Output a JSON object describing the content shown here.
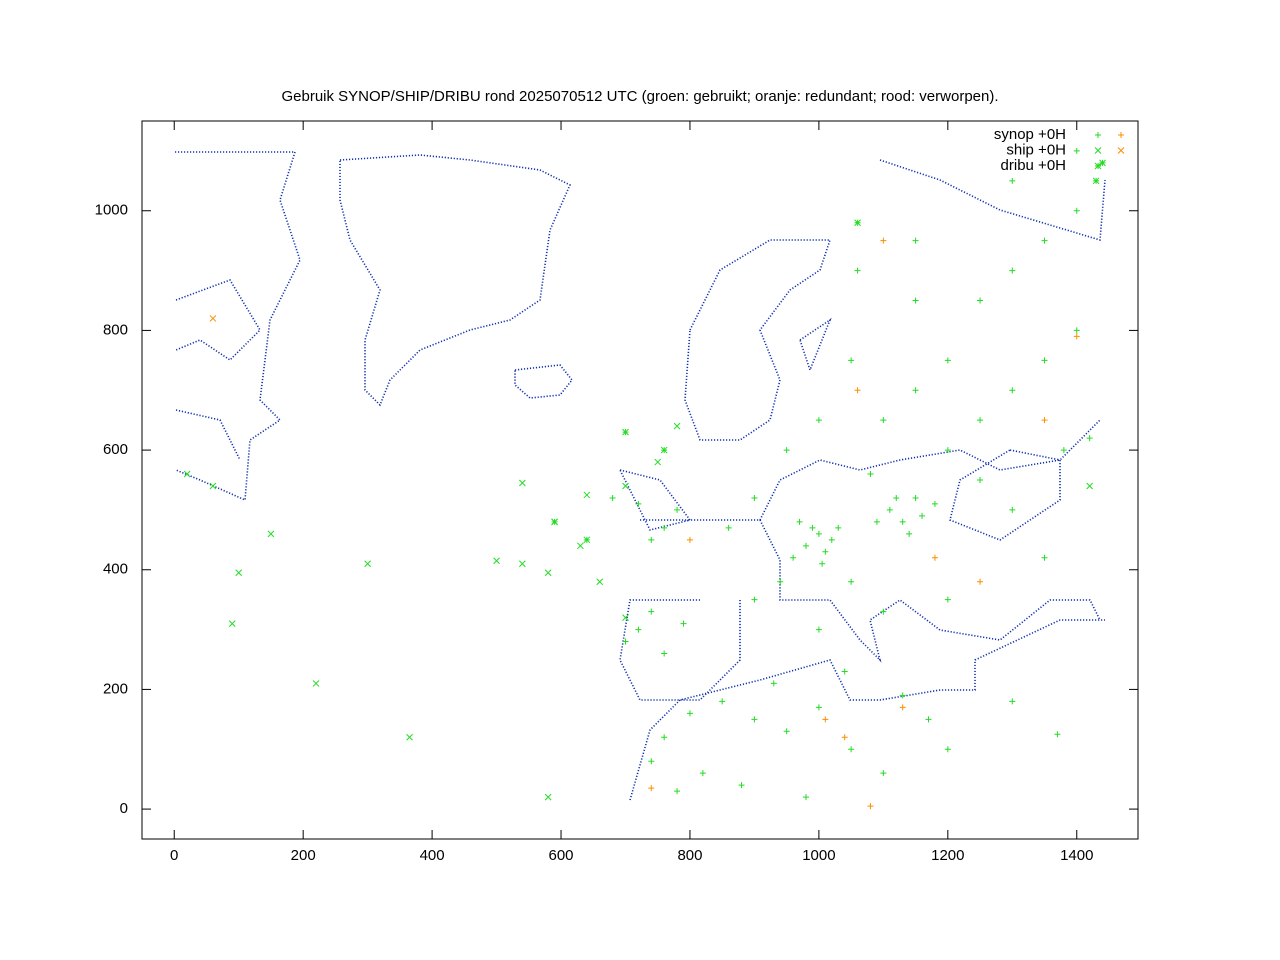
{
  "chart_data": {
    "type": "scatter",
    "title": "Gebruik SYNOP/SHIP/DRIBU rond 2025070512 UTC (groen: gebruikt; oranje: redundant; rood: verworpen).",
    "xlim": [
      -50,
      1495
    ],
    "ylim": [
      -50,
      1150
    ],
    "xticks": [
      0,
      200,
      400,
      600,
      800,
      1000,
      1200,
      1400
    ],
    "yticks": [
      0,
      200,
      400,
      600,
      800,
      1000
    ],
    "legend": "top-right",
    "series": [
      {
        "name": "synop +0H",
        "marker": "plus",
        "groups": [
          {
            "color": "#22dd22",
            "x": [
              760,
              800,
              850,
              900,
              950,
              1000,
              1050,
              1100,
              1130,
              820,
              880,
              980,
              1200,
              1370,
              1300,
              740,
              780,
              930,
              1170,
              1040,
              720,
              760,
              700,
              740,
              790,
              960,
              980,
              1000,
              1010,
              990,
              1020,
              970,
              1005,
              1030,
              1110,
              1130,
              1150,
              1120,
              1140,
              1160,
              1090,
              1180,
              900,
              860,
              940,
              1050,
              1080,
              1200,
              1250,
              1300,
              1350,
              1400,
              1100,
              1150,
              1200,
              1250,
              1300,
              1350,
              1400,
              1050,
              1000,
              950,
              1150,
              1250,
              1380,
              1420,
              1300,
              1350,
              1200,
              1100,
              1000,
              900,
              1060,
              1150,
              1300,
              1400,
              760,
              780,
              720,
              740,
              680
            ],
            "y": [
              120,
              160,
              180,
              150,
              130,
              170,
              100,
              60,
              190,
              60,
              40,
              20,
              100,
              125,
              180,
              80,
              30,
              210,
              150,
              230,
              300,
              260,
              280,
              330,
              310,
              420,
              440,
              460,
              430,
              470,
              450,
              480,
              410,
              470,
              500,
              480,
              520,
              520,
              460,
              490,
              480,
              510,
              520,
              470,
              380,
              380,
              560,
              600,
              650,
              700,
              750,
              800,
              650,
              700,
              750,
              850,
              900,
              950,
              1000,
              750,
              650,
              600,
              850,
              550,
              600,
              620,
              500,
              420,
              350,
              330,
              300,
              350,
              900,
              950,
              1050,
              1100,
              470,
              500,
              510,
              450,
              520
            ]
          },
          {
            "color": "#ff8c00",
            "x": [
              1010,
              1040,
              1080,
              740,
              1130,
              1250,
              1400,
              1350,
              1100,
              1060,
              1180,
              800
            ],
            "y": [
              150,
              120,
              5,
              35,
              170,
              380,
              790,
              650,
              950,
              700,
              420,
              450
            ]
          }
        ]
      },
      {
        "name": "ship +0H",
        "marker": "cross",
        "groups": [
          {
            "color": "#22dd22",
            "x": [
              20,
              60,
              100,
              90,
              150,
              220,
              300,
              365,
              500,
              540,
              580,
              590,
              630,
              640,
              660,
              700,
              750,
              780,
              1420,
              580,
              540,
              700
            ],
            "y": [
              560,
              540,
              395,
              310,
              460,
              210,
              410,
              120,
              415,
              410,
              395,
              480,
              440,
              525,
              380,
              320,
              580,
              640,
              540,
              20,
              545,
              540
            ]
          },
          {
            "color": "#ff8c00",
            "x": [
              60
            ],
            "y": [
              820
            ]
          }
        ]
      },
      {
        "name": "dribu +0H",
        "marker": "star",
        "groups": [
          {
            "color": "#22dd22",
            "x": [
              590,
              640,
              700,
              760,
              1060,
              1440,
              1430
            ],
            "y": [
              480,
              450,
              630,
              600,
              980,
              1080,
              1050
            ]
          }
        ]
      }
    ]
  }
}
